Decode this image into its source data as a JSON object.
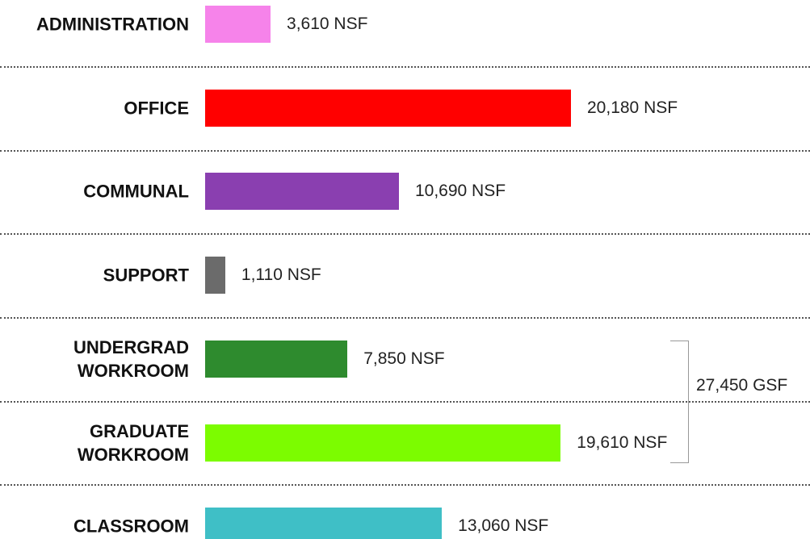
{
  "chart_data": {
    "type": "bar",
    "orientation": "horizontal",
    "categories": [
      "ADMINISTRATION",
      "OFFICE",
      "COMMUNAL",
      "SUPPORT",
      "UNDERGRAD WORKROOM",
      "GRADUATE WORKROOM",
      "CLASSROOM"
    ],
    "values": [
      3610,
      20180,
      10690,
      1110,
      7850,
      19610,
      13060
    ],
    "value_labels": [
      "3,610 NSF",
      "20,180 NSF",
      "10,690 NSF",
      "1,110 NSF",
      "7,850 NSF",
      "19,610 NSF",
      "13,060 NSF"
    ],
    "colors": [
      "#f683ea",
      "#ff0000",
      "#8a3fb0",
      "#6b6b6b",
      "#2e8b2e",
      "#7cfc00",
      "#3fbfc6"
    ],
    "annotation": "27,450 GSF"
  }
}
